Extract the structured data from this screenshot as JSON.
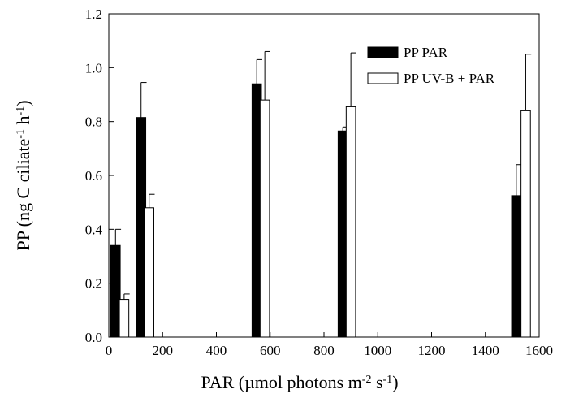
{
  "chart_data": {
    "type": "bar",
    "xlabel": [
      "PAR (µmol photons m",
      "-2",
      " s",
      "-1",
      ")"
    ],
    "ylabel": [
      "PP (ng C ciliate",
      "-1",
      " h",
      "-1",
      ")"
    ],
    "xlim": [
      0,
      1600
    ],
    "ylim": [
      0,
      1.2
    ],
    "xticks": [
      0,
      200,
      400,
      600,
      800,
      1000,
      1200,
      1400,
      1600
    ],
    "yticks": [
      {
        "value": 0,
        "label": "0.0"
      },
      0.2,
      0.4,
      0.6,
      0.8,
      {
        "value": 1,
        "label": "1.0"
      },
      1.2
    ],
    "bar_width": 35,
    "legend": "upper-right",
    "series": [
      {
        "name": "PP PAR",
        "color": "#000000",
        "x": [
          25,
          120,
          550,
          870,
          1515
        ],
        "values": [
          0.34,
          0.815,
          0.94,
          0.765,
          0.525
        ],
        "errors": [
          0.06,
          0.13,
          0.09,
          0.015,
          0.115
        ]
      },
      {
        "name": "PP UV-B + PAR",
        "color": "#ffffff",
        "x": [
          57,
          150,
          580,
          900,
          1550
        ],
        "values": [
          0.14,
          0.48,
          0.88,
          0.855,
          0.84
        ],
        "errors": [
          0.02,
          0.05,
          0.18,
          0.2,
          0.21
        ]
      }
    ]
  }
}
